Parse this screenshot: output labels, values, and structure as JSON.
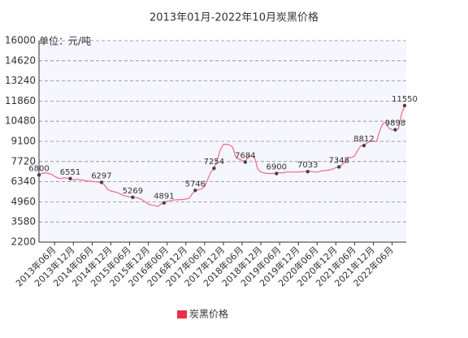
{
  "chart_data": {
    "type": "line",
    "title": "2013年01月-2022年10月炭黑价格",
    "y_label": "单位：元/吨",
    "categories": [
      null,
      null,
      null,
      null,
      null,
      "2013年06月",
      null,
      null,
      null,
      null,
      null,
      "2013年12月",
      null,
      null,
      null,
      null,
      null,
      "2014年06月",
      null,
      null,
      null,
      null,
      null,
      "2014年12月",
      null,
      null,
      null,
      null,
      null,
      "2015年06月",
      null,
      null,
      null,
      null,
      null,
      "2015年12月",
      null,
      null,
      null,
      null,
      null,
      "2016年06月",
      null,
      null,
      null,
      null,
      null,
      "2016年12月",
      null,
      null,
      null,
      null,
      null,
      "2017年06月",
      null,
      null,
      null,
      null,
      null,
      "2017年12月",
      null,
      null,
      null,
      null,
      null,
      "2018年06月",
      null,
      null,
      null,
      null,
      null,
      "2018年12月",
      null,
      null,
      null,
      null,
      null,
      "2019年06月",
      null,
      null,
      null,
      null,
      null,
      "2019年12月",
      null,
      null,
      null,
      null,
      null,
      "2020年06月",
      null,
      null,
      null,
      null,
      null,
      "2020年12月",
      null,
      null,
      null,
      null,
      null,
      "2021年06月",
      null,
      null,
      null,
      null,
      null,
      "2021年12月",
      null,
      null,
      null,
      null,
      null,
      "2022年06月",
      null,
      null,
      null,
      null
    ],
    "series": [
      {
        "name": "炭黑价格",
        "color": "#e8304a",
        "line_color": "#f06a8a",
        "values": [
          6800,
          6900,
          6950,
          6900,
          6850,
          6700,
          6600,
          6550,
          6600,
          6580,
          6551,
          6450,
          6500,
          6480,
          6450,
          6400,
          6380,
          6350,
          6330,
          6310,
          6297,
          6100,
          5800,
          5700,
          5650,
          5600,
          5500,
          5400,
          5350,
          5300,
          5269,
          5250,
          5200,
          5100,
          4950,
          4800,
          4750,
          4700,
          4650,
          4800,
          4891,
          5000,
          5050,
          5080,
          5100,
          5100,
          5120,
          5150,
          5200,
          5500,
          5746,
          5800,
          5850,
          6000,
          6500,
          7000,
          7254,
          7800,
          8500,
          8900,
          8900,
          8850,
          8700,
          8000,
          7900,
          7800,
          7684,
          8100,
          8100,
          8000,
          7200,
          7000,
          6950,
          6900,
          6900,
          6900,
          6900,
          6950,
          6950,
          7000,
          7000,
          7000,
          7000,
          7000,
          7020,
          7030,
          7033,
          7050,
          7000,
          7000,
          7050,
          7100,
          7100,
          7150,
          7200,
          7300,
          7348,
          7500,
          7700,
          8000,
          8000,
          8100,
          8500,
          8800,
          8812,
          9000,
          9100,
          9100,
          9100,
          9800,
          10300,
          10400,
          10000,
          9900,
          9898,
          9950,
          11000,
          11550
        ],
        "value_labels": [
          "6800",
          null,
          null,
          null,
          null,
          null,
          null,
          null,
          null,
          null,
          "6551",
          null,
          null,
          null,
          null,
          null,
          null,
          null,
          null,
          null,
          "6297",
          null,
          null,
          null,
          null,
          null,
          null,
          null,
          null,
          null,
          "5269",
          null,
          null,
          null,
          null,
          null,
          null,
          null,
          null,
          null,
          "4891",
          null,
          null,
          null,
          null,
          null,
          null,
          null,
          null,
          null,
          "5746",
          null,
          null,
          null,
          null,
          null,
          "7254",
          null,
          null,
          null,
          null,
          null,
          null,
          null,
          null,
          null,
          "7684",
          null,
          null,
          null,
          null,
          null,
          null,
          null,
          null,
          null,
          "6900",
          null,
          null,
          null,
          null,
          null,
          null,
          null,
          null,
          null,
          "7033",
          null,
          null,
          null,
          null,
          null,
          null,
          null,
          null,
          null,
          "7348",
          null,
          null,
          null,
          null,
          null,
          null,
          null,
          "8812",
          null,
          null,
          null,
          null,
          null,
          null,
          null,
          null,
          null,
          "9898",
          null,
          null,
          "11550"
        ]
      }
    ],
    "ylim": [
      2200,
      16000
    ],
    "yticks": [
      2200,
      3580,
      4960,
      6340,
      7720,
      9100,
      10480,
      11860,
      13240,
      14620,
      16000
    ],
    "grid": true,
    "legend": "bottom"
  }
}
